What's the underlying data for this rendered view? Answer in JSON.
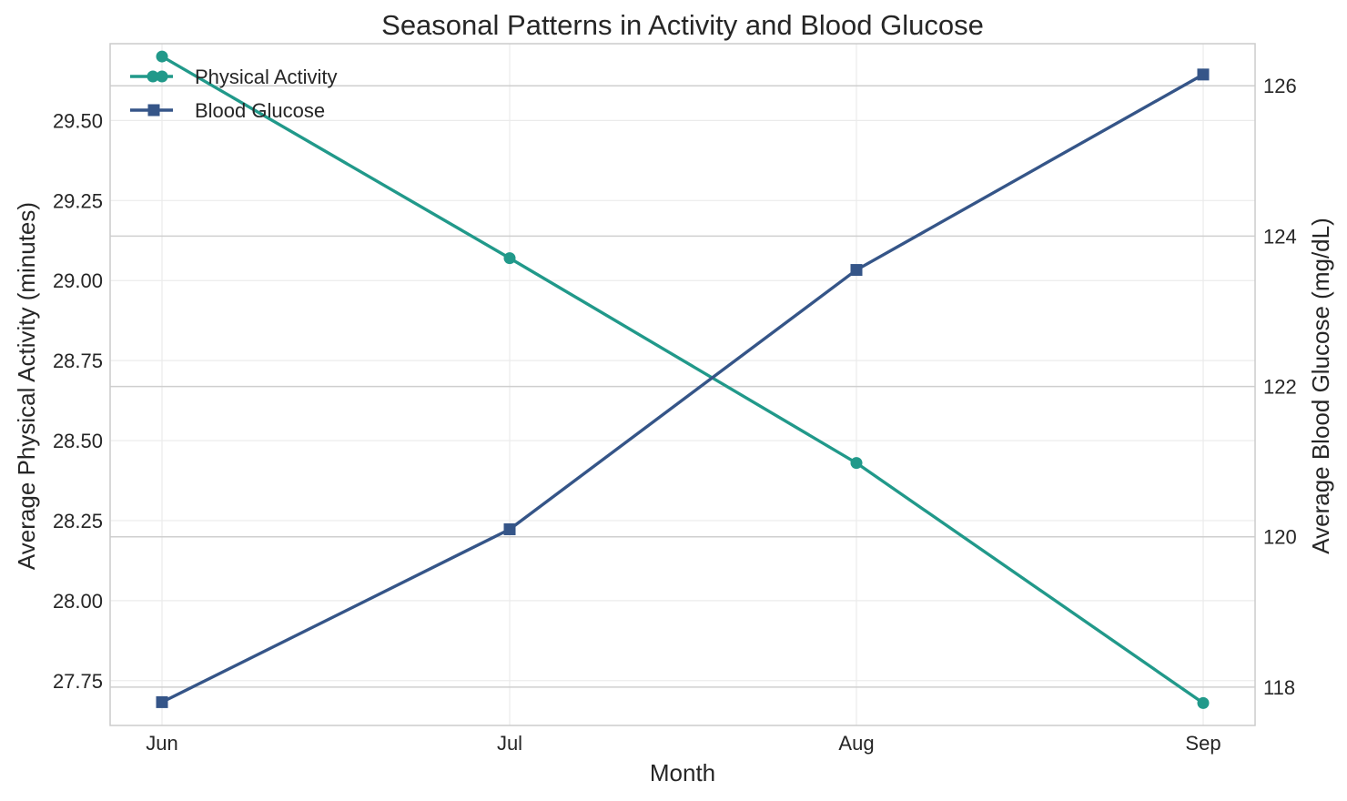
{
  "chart_data": {
    "type": "line",
    "title": "Seasonal Patterns in Activity and Blood Glucose",
    "xlabel": "Month",
    "categories": [
      "Jun",
      "Jul",
      "Aug",
      "Sep"
    ],
    "y_left": {
      "label": "Average Physical Activity (minutes)",
      "range": [
        27.61,
        29.74
      ],
      "ticks": [
        27.75,
        28.0,
        28.25,
        28.5,
        28.75,
        29.0,
        29.25,
        29.5
      ],
      "tick_labels": [
        "27.75",
        "28.00",
        "28.25",
        "28.50",
        "28.75",
        "29.00",
        "29.25",
        "29.50"
      ]
    },
    "y_right": {
      "label": "Average Blood Glucose (mg/dL)",
      "range": [
        117.49,
        126.56
      ],
      "ticks": [
        118,
        120,
        122,
        124,
        126
      ],
      "tick_labels": [
        "118",
        "120",
        "122",
        "124",
        "126"
      ]
    },
    "series": [
      {
        "name": "Physical Activity",
        "axis": "left",
        "color": "#21998a",
        "marker": "circle",
        "values": [
          29.7,
          29.07,
          28.43,
          27.68
        ]
      },
      {
        "name": "Blood Glucose",
        "axis": "right",
        "color": "#355588",
        "marker": "square",
        "values": [
          117.8,
          120.1,
          123.55,
          126.15
        ]
      }
    ],
    "grid": true,
    "legend_position": "top-left"
  }
}
